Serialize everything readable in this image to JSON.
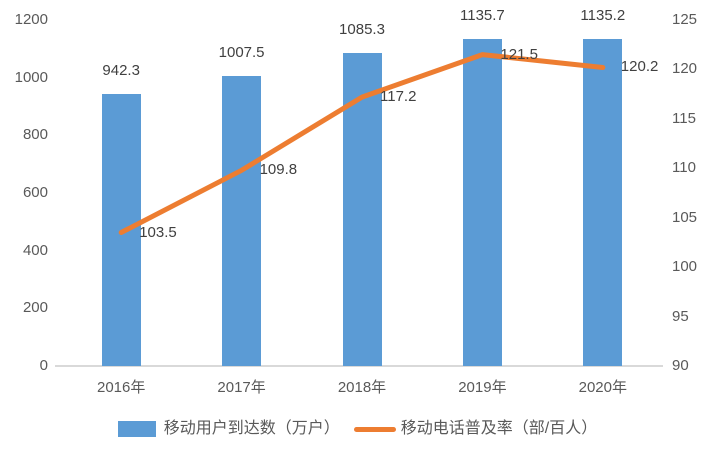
{
  "chart_data": {
    "type": "combo-bar-line",
    "title": "",
    "categories": [
      "2016年",
      "2017年",
      "2018年",
      "2019年",
      "2020年"
    ],
    "series": [
      {
        "name": "移动用户到达数（万户）",
        "type": "bar",
        "axis": "left",
        "color": "#5B9BD5",
        "values": [
          942.3,
          1007.5,
          1085.3,
          1135.7,
          1135.2
        ],
        "labels": [
          "942.3",
          "1007.5",
          "1085.3",
          "1135.7",
          "1135.2"
        ]
      },
      {
        "name": "移动电话普及率（部/百人）",
        "type": "line",
        "axis": "right",
        "color": "#ED7D31",
        "values": [
          103.5,
          109.8,
          117.2,
          121.5,
          120.2
        ],
        "labels": [
          "103.5",
          "109.8",
          "117.2",
          "121.5",
          "120.2"
        ]
      }
    ],
    "left_axis": {
      "min": 0,
      "max": 1200,
      "step": 200,
      "ticks": [
        "1200",
        "1000",
        "800",
        "600",
        "400",
        "200",
        "0"
      ]
    },
    "right_axis": {
      "min": 90,
      "max": 125,
      "step": 5,
      "ticks": [
        "125",
        "120",
        "115",
        "110",
        "105",
        "100",
        "95",
        "90"
      ]
    },
    "grid": false,
    "legend_position": "bottom",
    "colors": {
      "axis_line": "#D9D9D9",
      "tick_text": "#595959",
      "data_label_text": "#404040",
      "background": "#FFFFFF"
    }
  }
}
